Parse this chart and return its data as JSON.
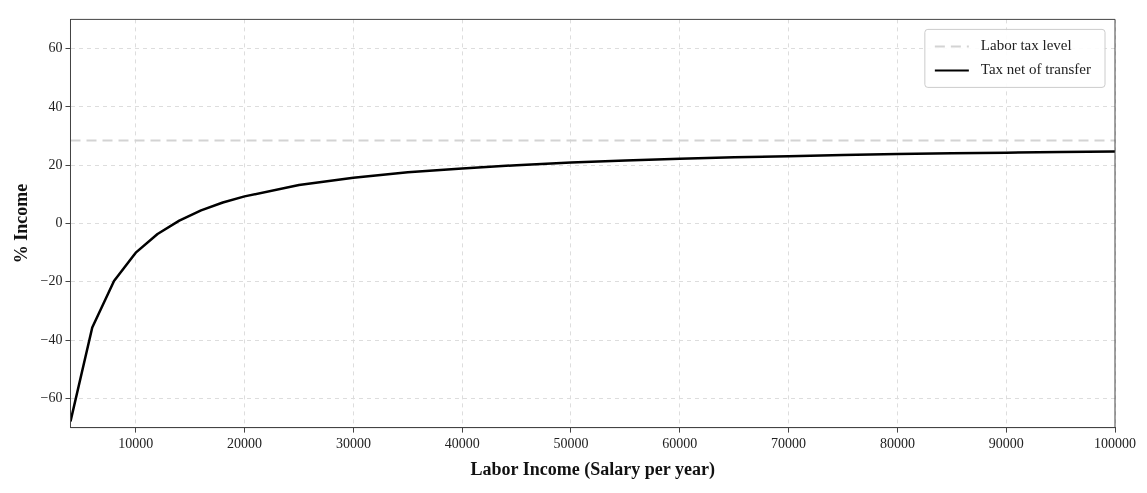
{
  "chart_data": {
    "type": "line",
    "xlabel": "Labor Income (Salary per year)",
    "ylabel": "% Income",
    "x": [
      4000,
      6000,
      8000,
      10000,
      12000,
      14000,
      16000,
      18000,
      20000,
      25000,
      30000,
      35000,
      40000,
      45000,
      50000,
      55000,
      60000,
      65000,
      70000,
      75000,
      80000,
      85000,
      90000,
      95000,
      100000
    ],
    "series": [
      {
        "name": "Tax net of transfer",
        "color": "#000000",
        "values": [
          -67.9,
          -35.7,
          -19.7,
          -10.0,
          -3.6,
          1.0,
          4.5,
          7.2,
          9.3,
          13.2,
          15.7,
          17.6,
          18.9,
          20.0,
          20.9,
          21.6,
          22.2,
          22.7,
          23.1,
          23.5,
          23.8,
          24.1,
          24.3,
          24.5,
          24.7
        ]
      }
    ],
    "ref_lines": [
      {
        "axis": "y",
        "value": 28.5,
        "label": "Labor tax level",
        "color": "#d3d3d3",
        "line_style": "dashed"
      }
    ],
    "xlim": [
      4000,
      100000
    ],
    "xticks": [
      10000,
      20000,
      30000,
      40000,
      50000,
      60000,
      70000,
      80000,
      90000,
      100000
    ],
    "ylim": [
      -70,
      70
    ],
    "yticks": [
      {
        "value": -60,
        "label": "−60"
      },
      {
        "value": -40,
        "label": "−40"
      },
      {
        "value": -20,
        "label": "−20"
      },
      0,
      20,
      40,
      60
    ],
    "grid": true,
    "legend": "top right",
    "marker": "none",
    "line_style": "solid"
  }
}
